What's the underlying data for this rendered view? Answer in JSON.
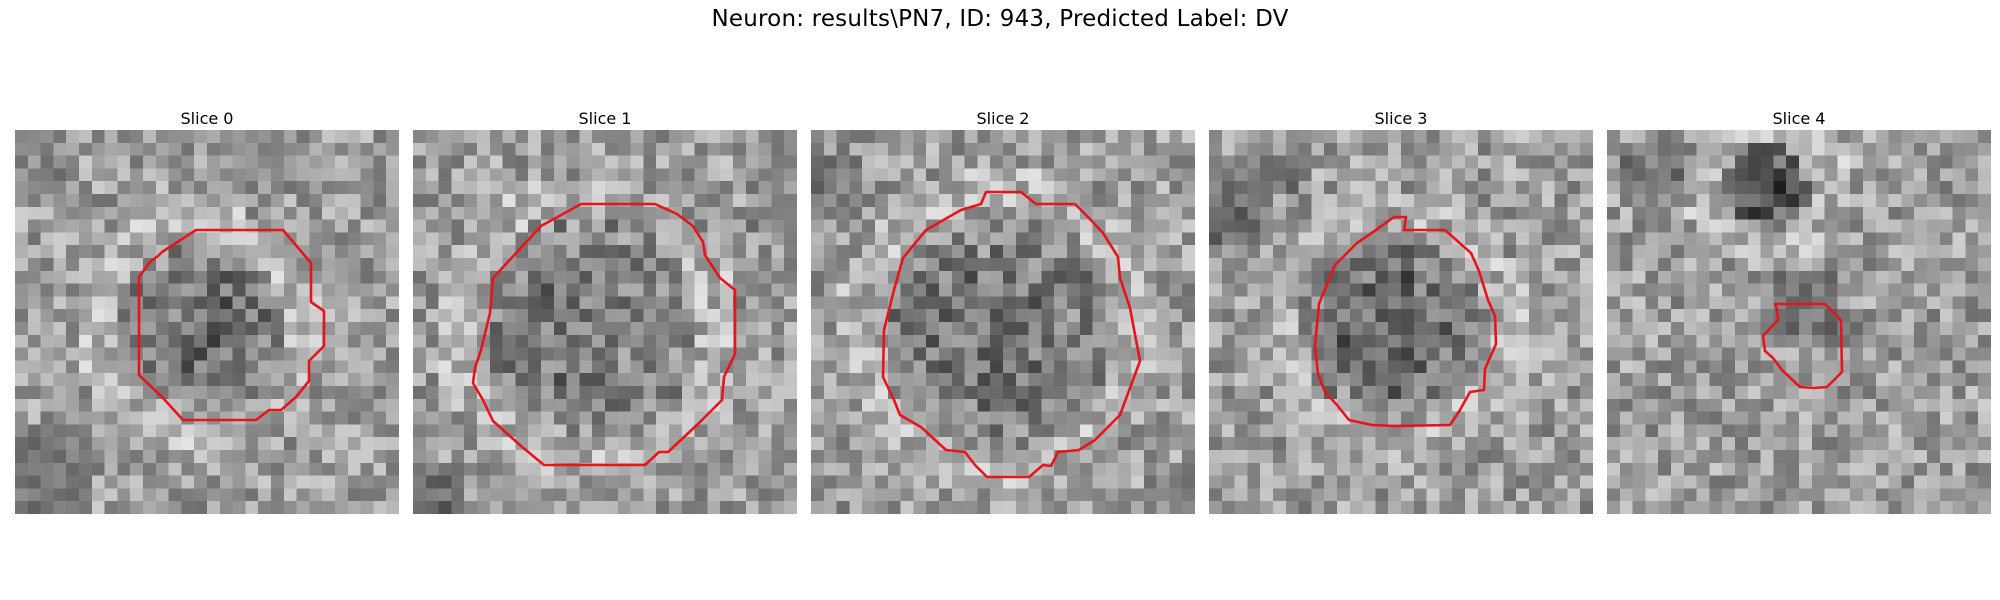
{
  "figure": {
    "suptitle": "Neuron: results\\PN7, ID: 943, Predicted Label: DV"
  },
  "panels": [
    {
      "title": "Slice 0"
    },
    {
      "title": "Slice 1"
    },
    {
      "title": "Slice 2"
    },
    {
      "title": "Slice 3"
    },
    {
      "title": "Slice 4"
    }
  ],
  "colors": {
    "contour": "#e8141c",
    "background": "#ffffff"
  }
}
